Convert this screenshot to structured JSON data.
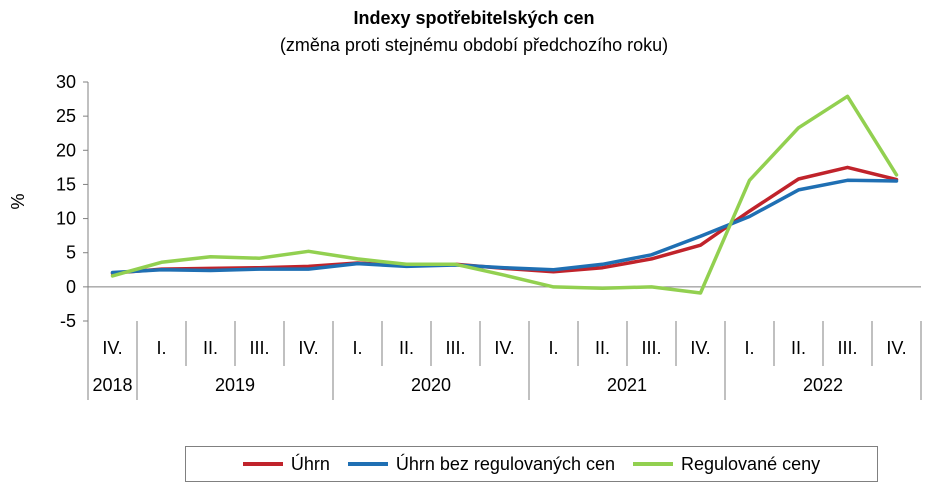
{
  "chart_data": {
    "type": "line",
    "title": "Indexy spotřebitelských cen",
    "subtitle": "(změna proti stejnému období předchozího roku)",
    "ylabel": "%",
    "ylim": [
      -5,
      30
    ],
    "yticks": [
      -5,
      0,
      5,
      10,
      15,
      20,
      25,
      30
    ],
    "x": [
      "IV.",
      "I.",
      "II.",
      "III.",
      "IV.",
      "I.",
      "II.",
      "III.",
      "IV.",
      "I.",
      "II.",
      "III.",
      "IV.",
      "I.",
      "II.",
      "III.",
      "IV."
    ],
    "years": [
      {
        "label": "2018",
        "count": 1
      },
      {
        "label": "2019",
        "count": 4
      },
      {
        "label": "2020",
        "count": 4
      },
      {
        "label": "2021",
        "count": 4
      },
      {
        "label": "2022",
        "count": 4
      }
    ],
    "grid": false,
    "legend_position": "bottom",
    "series": [
      {
        "name": "Úhrn",
        "color": "#c0232b",
        "values": [
          2.0,
          2.6,
          2.7,
          2.8,
          3.0,
          3.5,
          3.1,
          3.3,
          2.7,
          2.2,
          2.8,
          4.1,
          6.1,
          11.1,
          15.8,
          17.5,
          15.7
        ]
      },
      {
        "name": "Úhrn bez regulovaných cen",
        "color": "#1f6fb3",
        "values": [
          2.1,
          2.5,
          2.4,
          2.6,
          2.6,
          3.4,
          3.0,
          3.2,
          2.8,
          2.5,
          3.3,
          4.7,
          7.4,
          10.3,
          14.2,
          15.6,
          15.5
        ]
      },
      {
        "name": "Regulované ceny",
        "color": "#92d050",
        "values": [
          1.6,
          3.6,
          4.4,
          4.2,
          5.2,
          4.1,
          3.3,
          3.3,
          1.7,
          0.0,
          -0.2,
          0.0,
          -0.9,
          15.6,
          23.3,
          27.9,
          16.4
        ]
      }
    ]
  }
}
